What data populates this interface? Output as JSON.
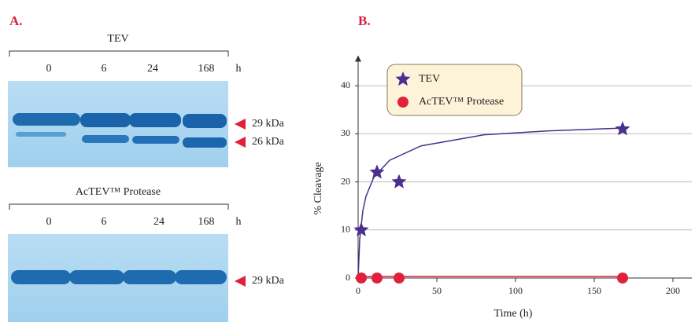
{
  "panel_a": {
    "label": "A.",
    "gels": [
      {
        "title": "TEV",
        "lanes": [
          "0",
          "6",
          "24",
          "168"
        ],
        "unit": "h",
        "markers": [
          "29 kDa",
          "26 kDa"
        ]
      },
      {
        "title": "AcTEV™ Protease",
        "lanes": [
          "0",
          "6",
          "24",
          "168"
        ],
        "unit": "h",
        "markers": [
          "29 kDa"
        ]
      }
    ]
  },
  "chart_data": {
    "type": "scatter",
    "label": "B.",
    "x_label": "Time (h)",
    "y_label": "% Cleavage",
    "xlim": [
      0,
      212
    ],
    "ylim": [
      0,
      46
    ],
    "xticks": [
      0,
      50,
      100,
      150,
      200
    ],
    "yticks": [
      0,
      10,
      20,
      30,
      40
    ],
    "grid": true,
    "series": [
      {
        "name": "TEV",
        "color": "#4b2e90",
        "marker": "star",
        "x": [
          2,
          12,
          26,
          168
        ],
        "values": [
          10,
          22,
          20,
          31
        ],
        "curve": {
          "x": [
            0,
            1,
            3,
            5,
            10,
            20,
            40,
            80,
            120,
            168
          ],
          "values": [
            0,
            8,
            14,
            17,
            21,
            24.5,
            27.5,
            29.8,
            30.6,
            31.2
          ]
        }
      },
      {
        "name": "AcTEV™ Protease",
        "color": "#e0203c",
        "marker": "circle",
        "x": [
          2,
          12,
          26,
          168
        ],
        "values": [
          0,
          0,
          0,
          0
        ],
        "curve": {
          "x": [
            0,
            168
          ],
          "values": [
            0.3,
            0.3
          ]
        }
      }
    ]
  }
}
